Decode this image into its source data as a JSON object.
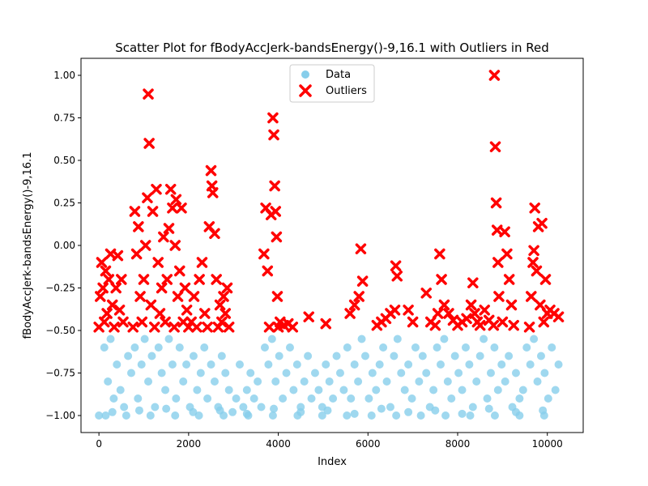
{
  "chart_data": {
    "type": "scatter",
    "title": "Scatter Plot for fBodyAccJerk-bandsEnergy()-9,16.1 with Outliers in Red",
    "xlabel": "Index",
    "ylabel": "fBodyAccJerk-bandsEnergy()-9,16.1",
    "xlim": [
      -400,
      10800
    ],
    "ylim": [
      -1.1,
      1.1
    ],
    "x_ticks": [
      0,
      2000,
      4000,
      6000,
      8000,
      10000
    ],
    "x_tick_labels": [
      "0",
      "2000",
      "4000",
      "6000",
      "8000",
      "10000"
    ],
    "y_ticks": [
      -1.0,
      -0.75,
      -0.5,
      -0.25,
      0.0,
      0.25,
      0.5,
      0.75,
      1.0
    ],
    "y_tick_labels": [
      "−1.00",
      "−0.75",
      "−0.50",
      "−0.25",
      "0.00",
      "0.25",
      "0.50",
      "0.75",
      "1.00"
    ],
    "grid": false,
    "legend_position": "top-center",
    "series": [
      {
        "name": "Data",
        "color": "#87CEEB",
        "marker": "circle",
        "x": [
          0,
          120,
          200,
          260,
          330,
          400,
          480,
          560,
          650,
          720,
          800,
          870,
          950,
          1020,
          1100,
          1180,
          1250,
          1330,
          1400,
          1480,
          1560,
          1640,
          1720,
          1800,
          1880,
          1950,
          2030,
          2110,
          2190,
          2270,
          2350,
          2420,
          2500,
          2580,
          2660,
          2740,
          2820,
          2900,
          2980,
          3060,
          3140,
          3220,
          3300,
          3380,
          3460,
          3540,
          3620,
          3700,
          3780,
          3860,
          3940,
          4020,
          4100,
          4180,
          4260,
          4340,
          4420,
          4500,
          4580,
          4660,
          4740,
          4820,
          4900,
          4980,
          5060,
          5140,
          5220,
          5300,
          5380,
          5460,
          5540,
          5620,
          5700,
          5780,
          5860,
          5940,
          6020,
          6100,
          6180,
          6260,
          6340,
          6420,
          6500,
          6580,
          6660,
          6740,
          6820,
          6900,
          6980,
          7060,
          7140,
          7220,
          7300,
          7380,
          7460,
          7540,
          7620,
          7700,
          7780,
          7860,
          7940,
          8020,
          8100,
          8180,
          8260,
          8340,
          8420,
          8500,
          8580,
          8660,
          8740,
          8820,
          8900,
          8980,
          9060,
          9140,
          9220,
          9300,
          9380,
          9460,
          9540,
          9620,
          9700,
          9780,
          9860,
          9940,
          10020,
          10100,
          10180,
          10250,
          150,
          610,
          1150,
          1700,
          2230,
          2780,
          3330,
          3880,
          4430,
          4980,
          5530,
          6080,
          6630,
          7180,
          7730,
          8280,
          8830,
          9380,
          9930,
          300,
          900,
          1500,
          2100,
          2700,
          3300,
          3900,
          4500,
          5100,
          5700,
          6300,
          6900,
          7500,
          8100,
          8700,
          9300,
          9900
        ],
        "y": [
          -1.0,
          -0.6,
          -0.8,
          -0.55,
          -0.9,
          -0.7,
          -0.85,
          -0.95,
          -0.65,
          -0.75,
          -0.6,
          -0.9,
          -0.7,
          -0.55,
          -0.8,
          -0.65,
          -0.95,
          -0.6,
          -0.75,
          -0.85,
          -0.55,
          -0.7,
          -0.9,
          -0.6,
          -0.8,
          -0.7,
          -0.95,
          -0.65,
          -0.85,
          -0.75,
          -0.6,
          -0.9,
          -0.7,
          -0.8,
          -0.95,
          -0.65,
          -0.75,
          -0.85,
          -0.98,
          -0.9,
          -0.7,
          -0.95,
          -0.85,
          -0.75,
          -0.9,
          -0.8,
          -0.95,
          -0.6,
          -0.7,
          -0.55,
          -0.8,
          -0.65,
          -0.9,
          -0.75,
          -0.6,
          -0.85,
          -0.7,
          -0.95,
          -0.8,
          -0.65,
          -0.9,
          -0.75,
          -0.85,
          -0.95,
          -0.7,
          -0.8,
          -0.9,
          -0.65,
          -0.75,
          -0.85,
          -0.6,
          -0.9,
          -0.7,
          -0.8,
          -0.55,
          -0.65,
          -0.9,
          -0.75,
          -0.85,
          -0.7,
          -0.6,
          -0.8,
          -0.95,
          -0.65,
          -0.55,
          -0.75,
          -0.85,
          -0.7,
          -0.9,
          -0.6,
          -0.8,
          -0.65,
          -0.75,
          -0.95,
          -0.85,
          -0.6,
          -0.7,
          -0.55,
          -0.8,
          -0.9,
          -0.65,
          -0.75,
          -0.85,
          -0.6,
          -0.7,
          -0.95,
          -0.8,
          -0.65,
          -0.55,
          -0.9,
          -0.75,
          -0.6,
          -0.85,
          -0.7,
          -0.8,
          -0.65,
          -0.95,
          -0.75,
          -0.9,
          -0.85,
          -0.6,
          -0.7,
          -0.55,
          -0.8,
          -0.65,
          -0.75,
          -0.9,
          -0.6,
          -0.85,
          -0.7,
          -1.0,
          -1.0,
          -1.0,
          -1.0,
          -1.0,
          -1.0,
          -1.0,
          -1.0,
          -1.0,
          -1.0,
          -1.0,
          -1.0,
          -1.0,
          -1.0,
          -1.0,
          -1.0,
          -1.0,
          -1.0,
          -1.0,
          -0.98,
          -0.97,
          -0.96,
          -0.98,
          -0.97,
          -0.99,
          -0.96,
          -0.98,
          -0.97,
          -0.99,
          -0.96,
          -0.98,
          -0.97,
          -0.99,
          -0.96,
          -0.98,
          -0.97
        ]
      },
      {
        "name": "Outliers",
        "color": "#FF0000",
        "marker": "x",
        "x": [
          0,
          30,
          60,
          90,
          120,
          150,
          180,
          220,
          260,
          300,
          340,
          380,
          420,
          460,
          500,
          540,
          760,
          800,
          840,
          880,
          920,
          960,
          1000,
          1040,
          1080,
          1100,
          1120,
          1160,
          1200,
          1240,
          1280,
          1320,
          1360,
          1400,
          1440,
          1480,
          1520,
          1560,
          1600,
          1640,
          1680,
          1700,
          1720,
          1760,
          1800,
          1840,
          1880,
          1920,
          1960,
          2000,
          2060,
          2120,
          2180,
          2240,
          2300,
          2360,
          2420,
          2460,
          2500,
          2520,
          2540,
          2580,
          2620,
          2660,
          2700,
          2740,
          2780,
          2820,
          2860,
          2900,
          3680,
          3720,
          3760,
          3800,
          3840,
          3880,
          3900,
          3920,
          3940,
          3960,
          3980,
          4000,
          4040,
          4120,
          4220,
          4320,
          4680,
          5060,
          5600,
          5700,
          5800,
          5840,
          5880,
          6200,
          6300,
          6400,
          6500,
          6600,
          6620,
          6650,
          6900,
          7000,
          7300,
          7400,
          7500,
          7560,
          7600,
          7640,
          7700,
          7800,
          7900,
          8000,
          8100,
          8200,
          8300,
          8340,
          8380,
          8440,
          8500,
          8600,
          8700,
          8800,
          8820,
          8840,
          8860,
          8880,
          8900,
          8920,
          9000,
          9050,
          9100,
          9150,
          9200,
          9250,
          9600,
          9640,
          9680,
          9700,
          9720,
          9760,
          9800,
          9840,
          9880,
          9920,
          9960,
          10000,
          10060,
          10150,
          10250
        ],
        "y": [
          -0.48,
          -0.3,
          -0.1,
          -0.25,
          -0.45,
          -0.15,
          -0.4,
          -0.2,
          -0.05,
          -0.35,
          -0.48,
          -0.25,
          -0.06,
          -0.38,
          -0.2,
          -0.45,
          -0.48,
          0.2,
          -0.05,
          0.11,
          -0.3,
          -0.45,
          -0.2,
          0.0,
          0.28,
          0.89,
          0.6,
          -0.35,
          0.2,
          -0.48,
          0.33,
          -0.1,
          -0.4,
          -0.25,
          0.05,
          -0.45,
          -0.2,
          0.1,
          0.33,
          0.22,
          -0.48,
          0.0,
          0.27,
          -0.3,
          -0.15,
          0.22,
          -0.45,
          -0.25,
          -0.38,
          -0.48,
          -0.45,
          -0.3,
          -0.48,
          -0.2,
          -0.1,
          -0.4,
          -0.48,
          0.11,
          0.44,
          0.35,
          0.31,
          0.07,
          -0.2,
          -0.48,
          -0.35,
          -0.45,
          -0.3,
          -0.4,
          -0.25,
          -0.48,
          -0.05,
          0.22,
          -0.15,
          -0.48,
          0.18,
          0.75,
          0.65,
          0.35,
          0.2,
          0.05,
          -0.3,
          -0.48,
          -0.45,
          -0.47,
          -0.46,
          -0.48,
          -0.42,
          -0.46,
          -0.4,
          -0.35,
          -0.3,
          -0.02,
          -0.21,
          -0.47,
          -0.45,
          -0.43,
          -0.4,
          -0.38,
          -0.12,
          -0.18,
          -0.38,
          -0.45,
          -0.28,
          -0.45,
          -0.47,
          -0.4,
          -0.05,
          -0.2,
          -0.35,
          -0.4,
          -0.44,
          -0.47,
          -0.45,
          -0.43,
          -0.35,
          -0.22,
          -0.4,
          -0.45,
          -0.47,
          -0.38,
          -0.44,
          -0.47,
          1.0,
          0.58,
          0.25,
          0.09,
          -0.1,
          -0.3,
          -0.45,
          0.08,
          -0.05,
          -0.2,
          -0.35,
          -0.47,
          -0.48,
          -0.3,
          -0.1,
          -0.03,
          0.22,
          -0.15,
          0.11,
          -0.35,
          0.13,
          -0.45,
          -0.2,
          -0.4,
          -0.38,
          -0.4,
          -0.42
        ]
      }
    ]
  }
}
